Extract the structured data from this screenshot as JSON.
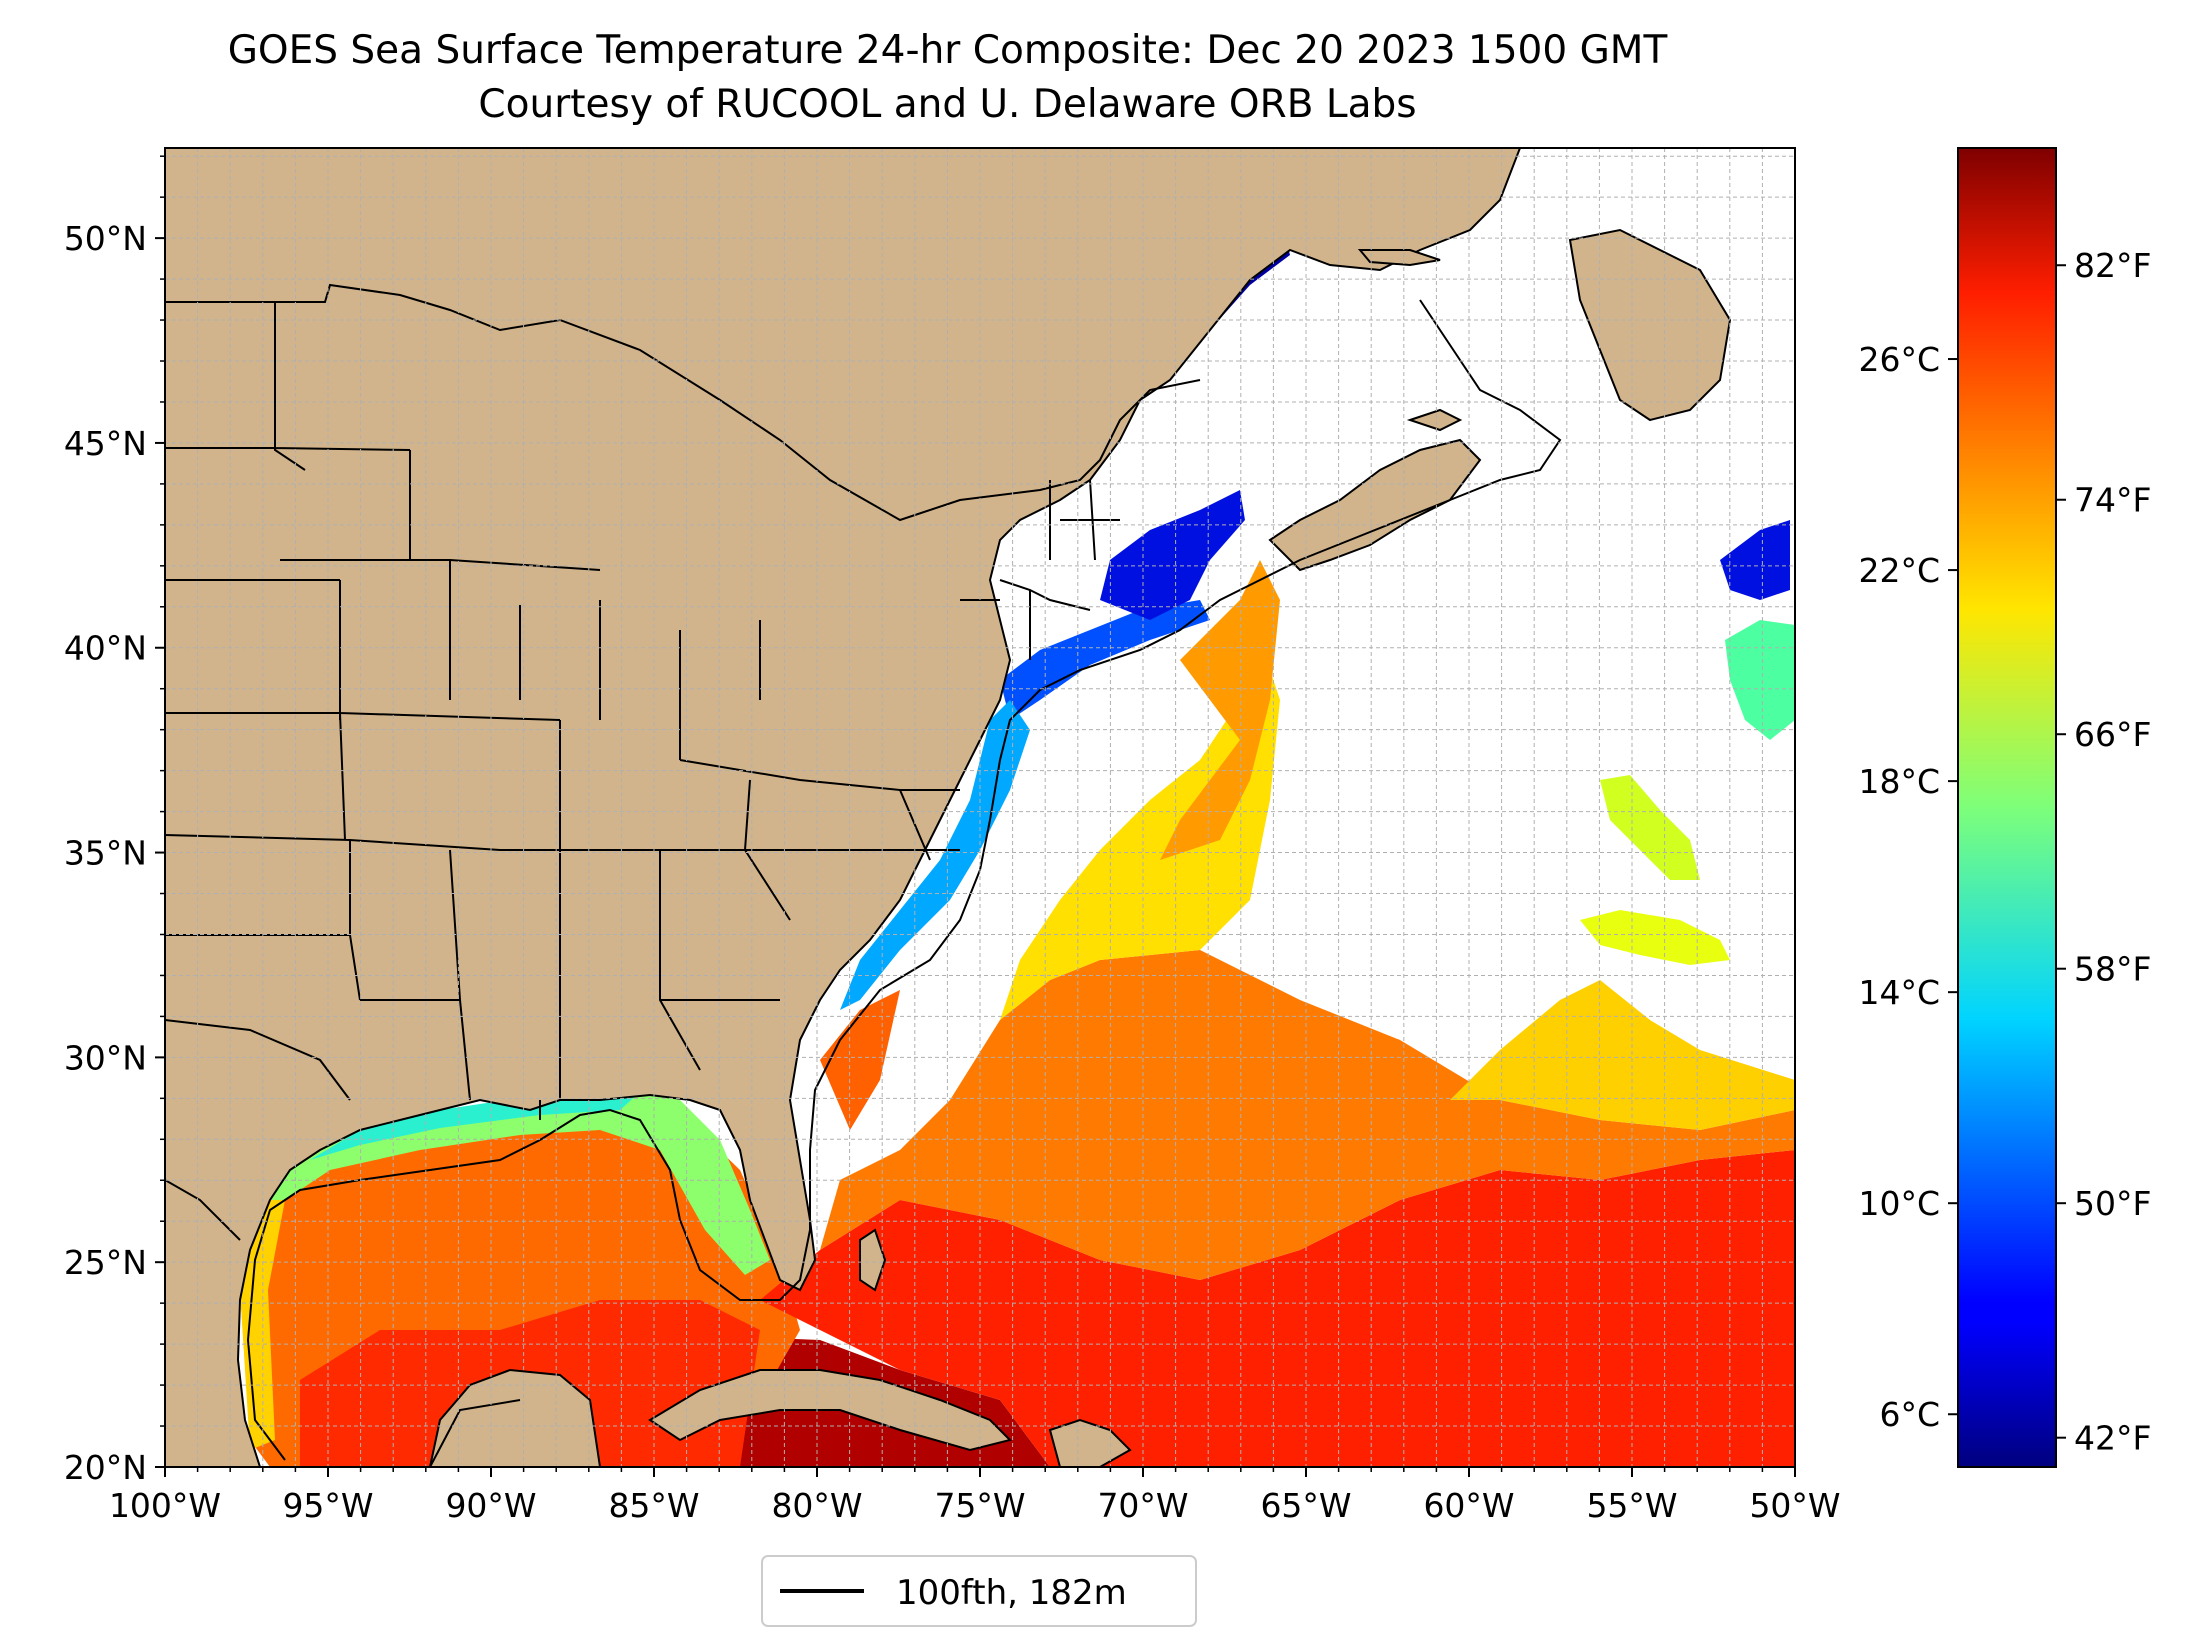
{
  "title": "GOES Sea Surface Temperature 24-hr Composite: Dec 20 2023 1500 GMT",
  "subtitle": "Courtesy of RUCOOL and U. Delaware ORB Labs",
  "map": {
    "extent": {
      "lon_min": -100,
      "lon_max": -50,
      "lat_min": 20,
      "lat_max": 52.2
    },
    "lat_ticks": [
      {
        "value": 20,
        "label": "20°N"
      },
      {
        "value": 25,
        "label": "25°N"
      },
      {
        "value": 30,
        "label": "30°N"
      },
      {
        "value": 35,
        "label": "35°N"
      },
      {
        "value": 40,
        "label": "40°N"
      },
      {
        "value": 45,
        "label": "45°N"
      },
      {
        "value": 50,
        "label": "50°N"
      }
    ],
    "lon_ticks": [
      {
        "value": -100,
        "label": "100°W"
      },
      {
        "value": -95,
        "label": "95°W"
      },
      {
        "value": -90,
        "label": "90°W"
      },
      {
        "value": -85,
        "label": "85°W"
      },
      {
        "value": -80,
        "label": "80°W"
      },
      {
        "value": -75,
        "label": "75°W"
      },
      {
        "value": -70,
        "label": "70°W"
      },
      {
        "value": -65,
        "label": "65°W"
      },
      {
        "value": -60,
        "label": "60°W"
      },
      {
        "value": -55,
        "label": "55°W"
      },
      {
        "value": -50,
        "label": "50°W"
      }
    ],
    "colors": {
      "land": "#d2b48c",
      "ocean_no_data": "#ffffff",
      "gridline": "#b0b0b0",
      "isobath": "#000000"
    }
  },
  "colorbar": {
    "colormap": "jet",
    "range_c": [
      5.0,
      30.0
    ],
    "celsius_ticks": [
      {
        "value": 6,
        "label": "6°C"
      },
      {
        "value": 10,
        "label": "10°C"
      },
      {
        "value": 14,
        "label": "14°C"
      },
      {
        "value": 18,
        "label": "18°C"
      },
      {
        "value": 22,
        "label": "22°C"
      },
      {
        "value": 26,
        "label": "26°C"
      }
    ],
    "fahrenheit_ticks": [
      {
        "value": 42,
        "label": "42°F"
      },
      {
        "value": 50,
        "label": "50°F"
      },
      {
        "value": 58,
        "label": "58°F"
      },
      {
        "value": 66,
        "label": "66°F"
      },
      {
        "value": 74,
        "label": "74°F"
      },
      {
        "value": 82,
        "label": "82°F"
      }
    ]
  },
  "legend": {
    "label": "100fth, 182m",
    "placement": "bottom-center"
  }
}
